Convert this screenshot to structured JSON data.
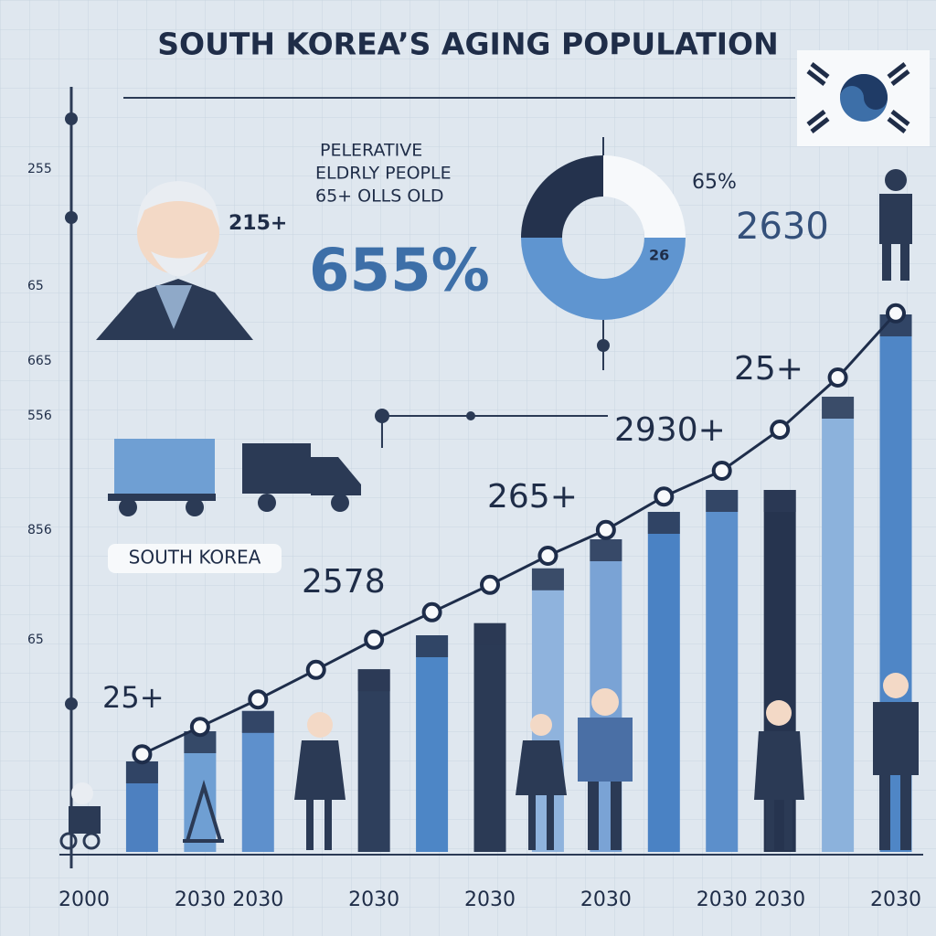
{
  "chart_data": {
    "type": "bar",
    "title": "SOUTH KOREA’S AGING POPULATION",
    "categories": [
      "2000",
      null,
      "2030",
      "2030",
      null,
      "2030",
      null,
      "2030",
      null,
      "2030",
      null,
      "2030",
      "2030",
      null,
      "2030"
    ],
    "series": [
      {
        "type": "bar",
        "values": [
          null,
          16.5,
          22,
          25.7,
          null,
          33.3,
          39.5,
          41.7,
          51.7,
          57,
          62,
          66,
          66,
          83,
          98
        ],
        "colors": [
          null,
          "#4d80c0",
          "#6f9fd3",
          "#5e90cc",
          null,
          "#2e3f5c",
          "#4d86c6",
          "#2b3a55",
          "#8fb3dd",
          "#7aa3d5",
          "#4a82c4",
          "#5c8fcb",
          "#26344f",
          "#8cb2dc",
          "#4f86c6"
        ]
      },
      {
        "type": "line",
        "color": "#1e2d4a",
        "values": [
          null,
          17.8,
          22.8,
          27.8,
          33.2,
          38.7,
          43.7,
          48.7,
          54,
          58.7,
          64.8,
          69.5,
          77,
          86.5,
          98.2
        ]
      }
    ],
    "ylim": [
      0,
      100
    ],
    "annotations": [
      "PELERATIVE",
      "ELDRLY PEOPLE",
      "65+ OLLS OLD",
      "655%",
      "65%",
      "26",
      "2630",
      "25+",
      "2930+",
      "265+",
      "2578",
      "25+",
      "215+",
      "SOUTH KOREA",
      "255",
      "65",
      "665",
      "556",
      "856",
      "65"
    ]
  }
}
